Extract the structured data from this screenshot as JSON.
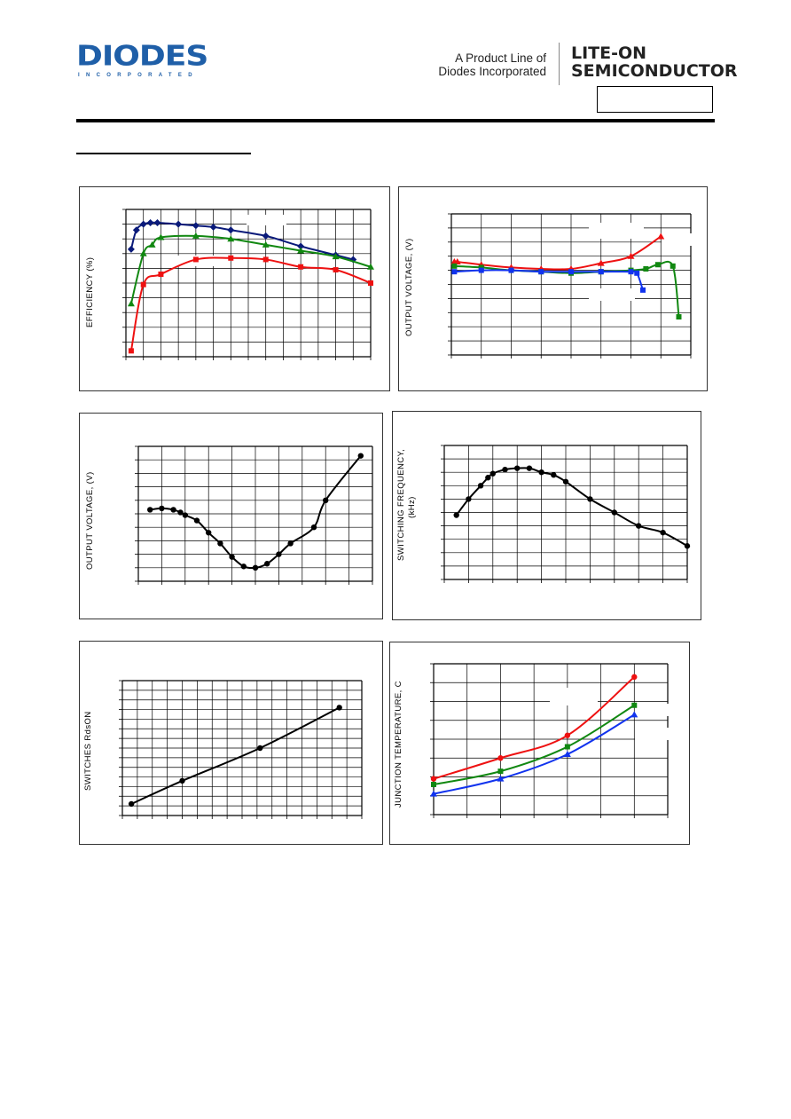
{
  "header": {
    "logo_text": "DIODES",
    "logo_subtext": "INCORPORATED",
    "tagline_line1": "A Product Line of",
    "tagline_line2": "Diodes Incorporated",
    "brand_line1": "LITE-ON",
    "brand_line2": "SEMICONDUCTOR"
  },
  "colors": {
    "red": "#ee1111",
    "green": "#118811",
    "navy": "#0a1a7a",
    "blue": "#1133ee",
    "black": "#000000"
  },
  "chart_data": [
    {
      "id": "efficiency",
      "type": "line",
      "ylabel": "EFFICIENCY (%)",
      "xlabel": "",
      "xlim": [
        0,
        14
      ],
      "ylim": [
        0,
        10
      ],
      "grid": "on",
      "series": [
        {
          "color": "navy",
          "marker": "diamond",
          "x": [
            0.3,
            0.6,
            1,
            1.4,
            1.8,
            3,
            4,
            5,
            6,
            8,
            10,
            12,
            13
          ],
          "y": [
            7.3,
            8.6,
            9.0,
            9.1,
            9.1,
            9.0,
            8.9,
            8.8,
            8.6,
            8.2,
            7.5,
            6.9,
            6.6
          ]
        },
        {
          "color": "green",
          "marker": "triangle",
          "x": [
            0.3,
            1,
            1.5,
            2,
            4,
            6,
            8,
            10,
            12,
            14
          ],
          "y": [
            3.6,
            7.0,
            7.6,
            8.1,
            8.2,
            8.0,
            7.6,
            7.2,
            6.8,
            6.1
          ]
        },
        {
          "color": "red",
          "marker": "square",
          "x": [
            0.3,
            1,
            2,
            4,
            6,
            8,
            10,
            12,
            14
          ],
          "y": [
            0.4,
            4.9,
            5.6,
            6.6,
            6.7,
            6.6,
            6.1,
            5.9,
            5.0
          ]
        }
      ]
    },
    {
      "id": "vout-load",
      "type": "line",
      "ylabel": "OUTPUT VOLTAGE, (V)",
      "xlabel": "",
      "xlim": [
        0,
        8
      ],
      "ylim": [
        0,
        10
      ],
      "grid": "on",
      "series": [
        {
          "color": "red",
          "marker": "triangle",
          "x": [
            0.1,
            0.2,
            1,
            2,
            3,
            4,
            5,
            6,
            7
          ],
          "y": [
            6.6,
            6.6,
            6.4,
            6.2,
            6.1,
            6.1,
            6.5,
            7.0,
            8.4
          ]
        },
        {
          "color": "green",
          "marker": "square",
          "x": [
            0.1,
            1,
            2,
            3,
            4,
            5,
            6,
            6.5,
            6.9,
            7.4,
            7.6
          ],
          "y": [
            6.3,
            6.2,
            6.0,
            5.9,
            5.8,
            5.9,
            6.0,
            6.1,
            6.4,
            6.3,
            2.7
          ]
        },
        {
          "color": "blue",
          "marker": "square",
          "x": [
            0.1,
            1,
            2,
            3,
            4,
            5,
            6,
            6.2,
            6.4
          ],
          "y": [
            5.9,
            6.0,
            6.0,
            5.9,
            5.9,
            5.9,
            5.9,
            5.8,
            4.6
          ]
        }
      ]
    },
    {
      "id": "vout-temp",
      "type": "line",
      "ylabel": "OUTPUT VOLTAGE, (V)",
      "xlabel": "",
      "xlim": [
        0,
        10
      ],
      "ylim": [
        0,
        10
      ],
      "grid": "on",
      "series": [
        {
          "color": "black",
          "marker": "circle",
          "x": [
            0.5,
            1,
            1.5,
            1.8,
            2,
            2.5,
            3,
            3.5,
            4,
            4.5,
            5,
            5.5,
            6,
            6.5,
            7.5,
            8,
            9.5
          ],
          "y": [
            5.3,
            5.4,
            5.3,
            5.1,
            4.9,
            4.5,
            3.6,
            2.8,
            1.8,
            1.1,
            1.0,
            1.3,
            2.0,
            2.8,
            4.0,
            6.0,
            9.3
          ]
        }
      ]
    },
    {
      "id": "freq-temp",
      "type": "line",
      "ylabel": "SWITCHING FREQUENCY,",
      "ylabel2": "(kHz)",
      "xlabel": "",
      "xlim": [
        0,
        10
      ],
      "ylim": [
        0,
        10
      ],
      "grid": "on",
      "series": [
        {
          "color": "black",
          "marker": "circle",
          "x": [
            0.5,
            1,
            1.5,
            1.8,
            2,
            2.5,
            3,
            3.5,
            4,
            4.5,
            5,
            6,
            7,
            8,
            9,
            10
          ],
          "y": [
            4.8,
            6.0,
            7.0,
            7.6,
            7.9,
            8.2,
            8.3,
            8.3,
            8.0,
            7.8,
            7.3,
            6.0,
            5.0,
            4.0,
            3.5,
            2.5
          ]
        }
      ]
    },
    {
      "id": "rdson",
      "type": "line",
      "ylabel": "SWITCHES RdsON",
      "xlabel": "",
      "xlim": [
        0,
        16
      ],
      "ylim": [
        0,
        14
      ],
      "grid": "on",
      "series": [
        {
          "color": "black",
          "marker": "circle",
          "x": [
            0.6,
            4.0,
            9.2,
            14.5
          ],
          "y": [
            1.2,
            3.6,
            7.0,
            11.2
          ]
        }
      ]
    },
    {
      "id": "junction-temp",
      "type": "line",
      "ylabel": "JUNCTION TEMPERATURE, C",
      "xlabel": "",
      "xlim": [
        0,
        7
      ],
      "ylim": [
        0,
        8
      ],
      "grid": "on",
      "series": [
        {
          "color": "red",
          "marker": "circle",
          "x": [
            0,
            2,
            4,
            6
          ],
          "y": [
            1.9,
            3.0,
            4.2,
            7.3
          ]
        },
        {
          "color": "green",
          "marker": "square",
          "x": [
            0,
            2,
            4,
            6
          ],
          "y": [
            1.6,
            2.3,
            3.6,
            5.8
          ]
        },
        {
          "color": "blue",
          "marker": "triangle",
          "x": [
            0,
            2,
            4,
            6
          ],
          "y": [
            1.1,
            1.9,
            3.2,
            5.3
          ]
        }
      ]
    }
  ]
}
